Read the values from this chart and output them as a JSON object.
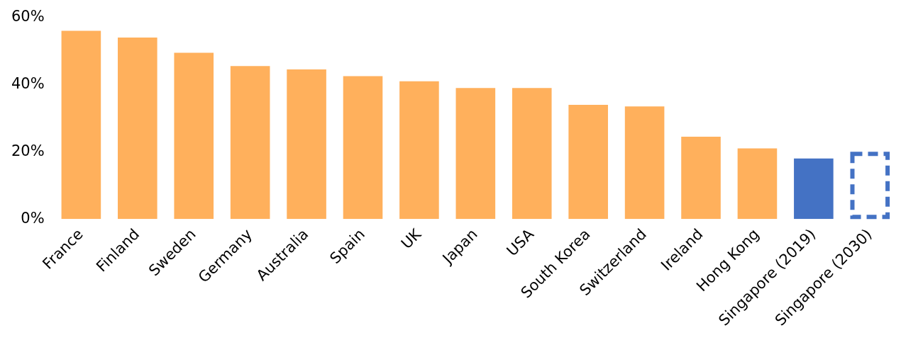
{
  "chart_data": {
    "type": "bar",
    "categories": [
      "France",
      "Finland",
      "Sweden",
      "Germany",
      "Australia",
      "Spain",
      "UK",
      "Japan",
      "USA",
      "South Korea",
      "Switzerland",
      "Ireland",
      "Hong Kong",
      "Singapore (2019)",
      "Singapore (2030)"
    ],
    "series": [
      {
        "color": "#ffb05c",
        "colors": [
          "#ffb05c",
          "#ffb05c",
          "#ffb05c",
          "#ffb05c",
          "#ffb05c",
          "#ffb05c",
          "#ffb05c",
          "#ffb05c",
          "#ffb05c",
          "#ffb05c",
          "#ffb05c",
          "#ffb05c",
          "#ffb05c",
          "#4472c4",
          null
        ],
        "values": [
          56,
          54,
          49.5,
          45.5,
          44.5,
          42.5,
          41,
          39,
          39,
          34,
          33.5,
          24.5,
          21,
          18,
          null
        ]
      },
      {
        "color": "#4472c4",
        "line_style": "dashed",
        "values": [
          null,
          null,
          null,
          null,
          null,
          null,
          null,
          null,
          null,
          null,
          null,
          null,
          null,
          null,
          20
        ]
      }
    ],
    "ylim": [
      0,
      60
    ],
    "yticks": [
      {
        "value": 0,
        "label": "0%"
      },
      {
        "value": 20,
        "label": "20%"
      },
      {
        "value": 40,
        "label": "40%"
      },
      {
        "value": 60,
        "label": "60%"
      }
    ],
    "grid": false,
    "legend": false
  }
}
